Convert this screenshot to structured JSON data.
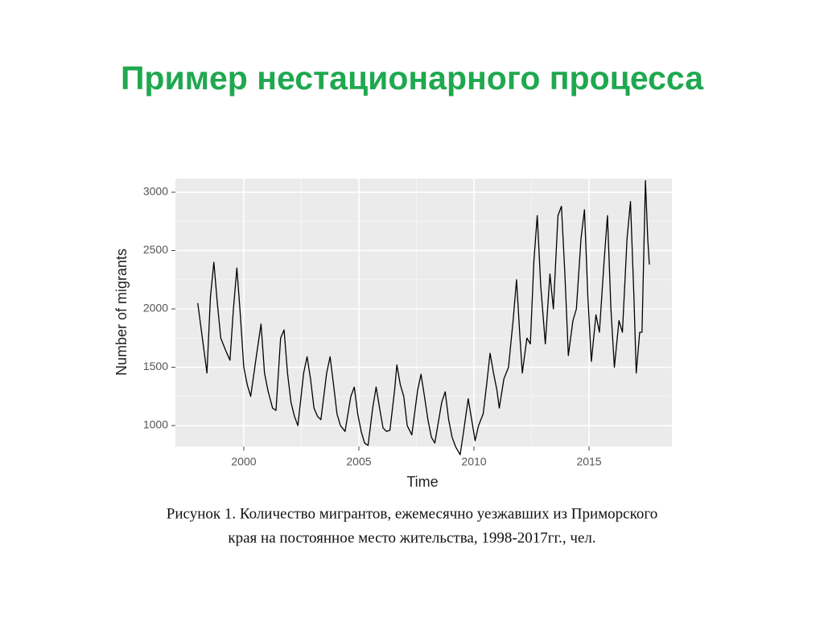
{
  "slide_title": "Пример нестационарного процесса",
  "caption": [
    "Рисунок 1. Количество мигрантов, ежемесячно уезжавших из Приморского",
    "края на постоянное место жительства, 1998-2017гг., чел."
  ],
  "chart_data": {
    "type": "line",
    "xlabel": "Time",
    "ylabel": "Number of migrants",
    "color": "#000000",
    "grid": true,
    "xlim": [
      1997.03,
      2018.6
    ],
    "xticks": [
      2000,
      2005,
      2010,
      2015
    ],
    "ylim": [
      821,
      3117
    ],
    "yticks": [
      1000,
      1500,
      2000,
      2500,
      3000
    ],
    "x": [
      1998.0,
      1998.2,
      1998.4,
      1998.55,
      1998.7,
      1998.85,
      1999.0,
      1999.2,
      1999.4,
      1999.55,
      1999.7,
      1999.85,
      2000.0,
      2000.15,
      2000.3,
      2000.55,
      2000.75,
      2000.9,
      2001.05,
      2001.25,
      2001.4,
      2001.6,
      2001.75,
      2001.9,
      2002.05,
      2002.2,
      2002.35,
      2002.6,
      2002.75,
      2002.9,
      2003.05,
      2003.2,
      2003.35,
      2003.6,
      2003.75,
      2003.9,
      2004.05,
      2004.2,
      2004.4,
      2004.65,
      2004.8,
      2004.95,
      2005.1,
      2005.25,
      2005.4,
      2005.6,
      2005.75,
      2005.9,
      2006.05,
      2006.2,
      2006.35,
      2006.55,
      2006.65,
      2006.8,
      2006.95,
      2007.1,
      2007.3,
      2007.55,
      2007.7,
      2007.85,
      2008.0,
      2008.15,
      2008.3,
      2008.6,
      2008.75,
      2008.9,
      2009.05,
      2009.2,
      2009.4,
      2009.55,
      2009.75,
      2009.9,
      2010.05,
      2010.2,
      2010.4,
      2010.55,
      2010.7,
      2010.85,
      2011.0,
      2011.1,
      2011.3,
      2011.5,
      2011.7,
      2011.85,
      2012.0,
      2012.1,
      2012.3,
      2012.45,
      2012.6,
      2012.75,
      2012.9,
      2013.1,
      2013.3,
      2013.45,
      2013.65,
      2013.8,
      2013.95,
      2014.1,
      2014.3,
      2014.45,
      2014.65,
      2014.8,
      2014.95,
      2015.1,
      2015.3,
      2015.45,
      2015.65,
      2015.8,
      2015.95,
      2016.1,
      2016.3,
      2016.45,
      2016.65,
      2016.8,
      2016.95,
      2017.05,
      2017.2,
      2017.3,
      2017.45,
      2017.55,
      2017.62
    ],
    "values": [
      2050,
      1750,
      1450,
      2100,
      2400,
      2050,
      1750,
      1650,
      1560,
      2000,
      2350,
      1950,
      1500,
      1350,
      1250,
      1600,
      1870,
      1450,
      1300,
      1150,
      1130,
      1750,
      1820,
      1450,
      1200,
      1080,
      1000,
      1450,
      1590,
      1400,
      1150,
      1080,
      1050,
      1450,
      1590,
      1350,
      1100,
      1000,
      950,
      1250,
      1330,
      1100,
      950,
      850,
      830,
      1150,
      1330,
      1150,
      980,
      950,
      960,
      1300,
      1520,
      1350,
      1250,
      1000,
      920,
      1300,
      1440,
      1250,
      1050,
      900,
      850,
      1200,
      1290,
      1050,
      900,
      820,
      750,
      950,
      1230,
      1050,
      870,
      1000,
      1100,
      1350,
      1620,
      1450,
      1300,
      1150,
      1400,
      1500,
      1900,
      2250,
      1750,
      1450,
      1750,
      1700,
      2400,
      2800,
      2200,
      1700,
      2300,
      2000,
      2800,
      2880,
      2300,
      1600,
      1900,
      2000,
      2600,
      2850,
      2100,
      1550,
      1950,
      1800,
      2400,
      2800,
      2000,
      1500,
      1900,
      1800,
      2600,
      2920,
      2100,
      1450,
      1800,
      1800,
      3100,
      2600,
      2380
    ]
  }
}
